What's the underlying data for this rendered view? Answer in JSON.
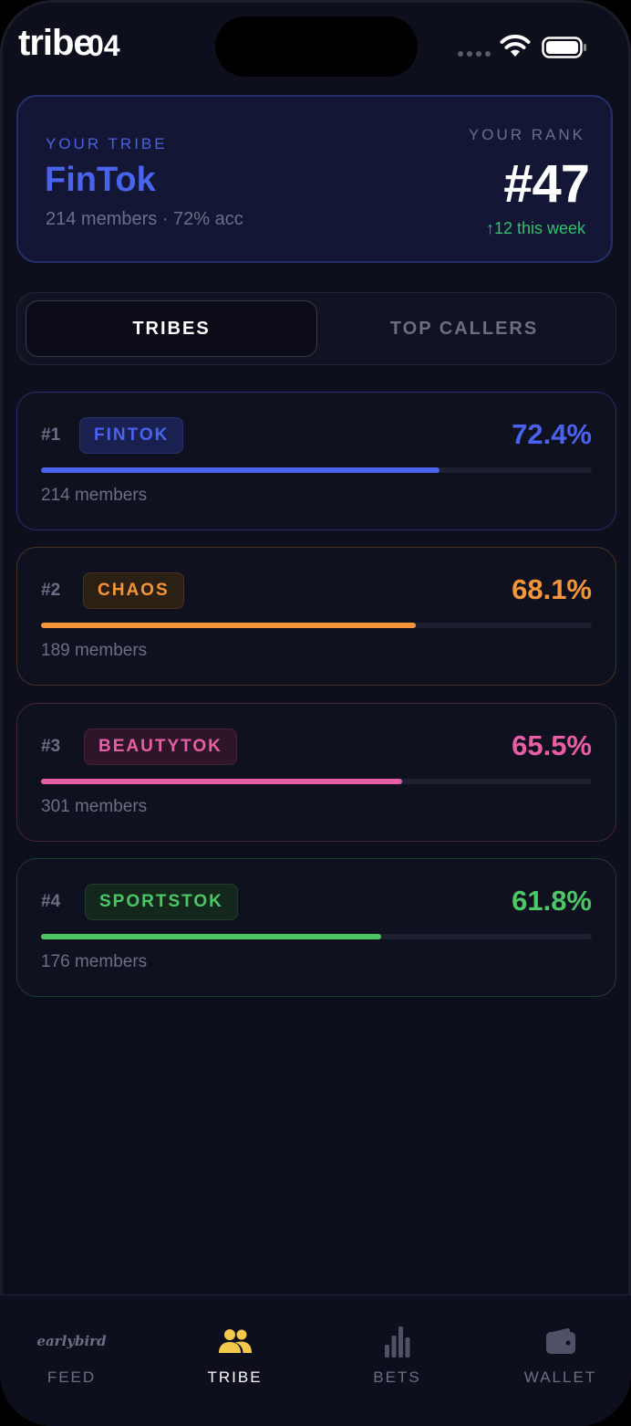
{
  "status_bar": {
    "app_title": "tribe",
    "time": "04"
  },
  "colors": {
    "background": "#0e0f1d",
    "accent_blue": "#4a63ee",
    "positive_green": "#34c06a"
  },
  "your_tribe_card": {
    "label": "YOUR TRIBE",
    "name": "FinTok",
    "meta": "214 members · 72% acc",
    "rank_label": "YOUR RANK",
    "rank": "#47",
    "rank_change": "↑12 this week"
  },
  "segmented_control": {
    "tabs": [
      {
        "label": "TRIBES",
        "active": true
      },
      {
        "label": "TOP CALLERS",
        "active": false
      }
    ]
  },
  "tribes": [
    {
      "rank": "#1",
      "name": "FINTOK",
      "accuracy": "72.4%",
      "progress": 0.724,
      "members": "214 members",
      "color": "#4a63ee",
      "border": "#24306e",
      "badge_bg": "#1a2150"
    },
    {
      "rank": "#2",
      "name": "CHAOS",
      "accuracy": "68.1%",
      "progress": 0.681,
      "members": "189 members",
      "color": "#f4953a",
      "border": "#4a3322",
      "badge_bg": "#2c1f14"
    },
    {
      "rank": "#3",
      "name": "BEAUTYTOK",
      "accuracy": "65.5%",
      "progress": 0.655,
      "members": "301 members",
      "color": "#e85ea6",
      "border": "#452538",
      "badge_bg": "#2e1628"
    },
    {
      "rank": "#4",
      "name": "SPORTSTOK",
      "accuracy": "61.8%",
      "progress": 0.618,
      "members": "176 members",
      "color": "#4bc766",
      "border": "#1e3d2a",
      "badge_bg": "#13271c"
    }
  ],
  "bottom_nav": {
    "items": [
      {
        "label": "FEED",
        "icon": "earlybird-logo-icon",
        "logo_text": "earlybird",
        "active": false
      },
      {
        "label": "TRIBE",
        "icon": "people-icon",
        "active": true
      },
      {
        "label": "BETS",
        "icon": "bar-chart-icon",
        "active": false
      },
      {
        "label": "WALLET",
        "icon": "wallet-icon",
        "active": false
      }
    ]
  }
}
